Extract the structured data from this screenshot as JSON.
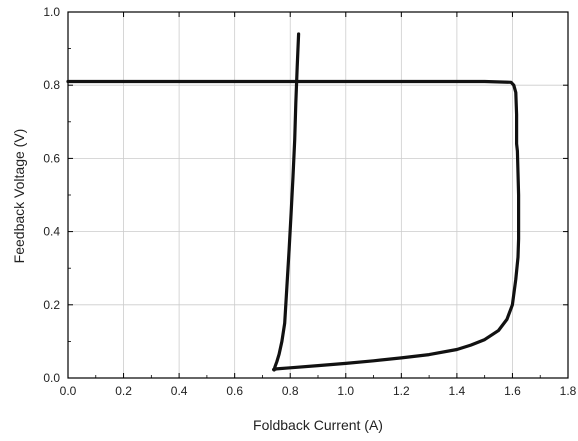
{
  "chart_data": {
    "type": "line",
    "title": "",
    "xlabel": "Foldback Current (A)",
    "ylabel": "Feedback Voltage (V)",
    "xlim": [
      0.0,
      1.8
    ],
    "ylim": [
      0.0,
      1.0
    ],
    "x_ticks": [
      "0.0",
      "0.2",
      "0.4",
      "0.6",
      "0.8",
      "1.0",
      "1.2",
      "1.4",
      "1.6",
      "1.8"
    ],
    "y_ticks": [
      "0.0",
      "0.2",
      "0.4",
      "0.6",
      "0.8",
      "1.0"
    ],
    "grid": true,
    "legend": "none",
    "colors": {
      "line": "#111111",
      "grid": "#cccccc",
      "axis": "#000000"
    },
    "series": [
      {
        "x": [
          0.0,
          0.4,
          0.8,
          1.2,
          1.5,
          1.595,
          1.605,
          1.612,
          1.615,
          1.615,
          1.618,
          1.62,
          1.622,
          1.622,
          1.62,
          1.612,
          1.6,
          1.58,
          1.55,
          1.5,
          1.45,
          1.4,
          1.3,
          1.2,
          1.1,
          1.0,
          0.9,
          0.8,
          0.75,
          0.74,
          0.742
        ],
        "y": [
          0.81,
          0.81,
          0.81,
          0.81,
          0.81,
          0.808,
          0.8,
          0.78,
          0.72,
          0.64,
          0.62,
          0.56,
          0.5,
          0.38,
          0.33,
          0.27,
          0.2,
          0.16,
          0.13,
          0.105,
          0.09,
          0.078,
          0.064,
          0.055,
          0.047,
          0.04,
          0.034,
          0.028,
          0.025,
          0.023,
          0.022
        ]
      },
      {
        "x": [
          0.742,
          0.745,
          0.752,
          0.76,
          0.77,
          0.78,
          0.788,
          0.796,
          0.803,
          0.81,
          0.816,
          0.82,
          0.825,
          0.83
        ],
        "y": [
          0.022,
          0.03,
          0.045,
          0.065,
          0.1,
          0.15,
          0.25,
          0.35,
          0.45,
          0.55,
          0.65,
          0.75,
          0.85,
          0.94
        ]
      }
    ]
  }
}
